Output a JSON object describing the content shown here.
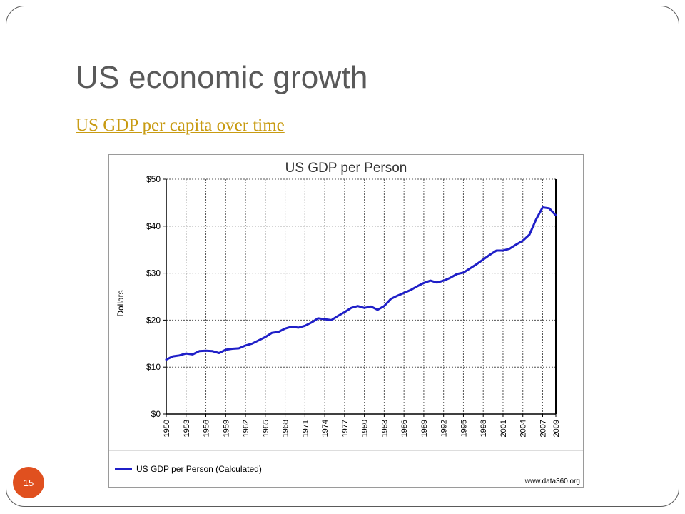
{
  "slide": {
    "title": "US economic growth",
    "link_text": "US GDP per capita over time",
    "page_number": "15"
  },
  "colors": {
    "frame": "#5a5a5a",
    "title_text": "#595959",
    "link": "#c89b12",
    "badge": "#e0501f",
    "series_line": "#1f1fc8"
  },
  "chart_data": {
    "type": "line",
    "title": "US GDP per Person",
    "ylabel": "Dollars",
    "xlabel": "",
    "ylim": [
      0,
      50
    ],
    "xlim": [
      1950,
      2009
    ],
    "grid": true,
    "y_tick_labels": [
      "$0",
      "$10",
      "$20",
      "$30",
      "$40",
      "$50"
    ],
    "y_tick_values": [
      0,
      10,
      20,
      30,
      40,
      50
    ],
    "x_tick_labels": [
      "1950",
      "1953",
      "1956",
      "1959",
      "1962",
      "1965",
      "1968",
      "1971",
      "1974",
      "1977",
      "1980",
      "1983",
      "1986",
      "1989",
      "1992",
      "1995",
      "1998",
      "2001",
      "2004",
      "2007",
      "2009"
    ],
    "legend_position": "bottom",
    "source": "www.data360.org",
    "series": [
      {
        "name": "US GDP per Person (Calculated)",
        "x": [
          1950,
          1951,
          1952,
          1953,
          1954,
          1955,
          1956,
          1957,
          1958,
          1959,
          1960,
          1961,
          1962,
          1963,
          1964,
          1965,
          1966,
          1967,
          1968,
          1969,
          1970,
          1971,
          1972,
          1973,
          1974,
          1975,
          1976,
          1977,
          1978,
          1979,
          1980,
          1981,
          1982,
          1983,
          1984,
          1985,
          1986,
          1987,
          1988,
          1989,
          1990,
          1991,
          1992,
          1993,
          1994,
          1995,
          1996,
          1997,
          1998,
          1999,
          2000,
          2001,
          2002,
          2003,
          2004,
          2005,
          2006,
          2007,
          2008,
          2009
        ],
        "values": [
          11.6,
          12.3,
          12.5,
          12.9,
          12.7,
          13.4,
          13.5,
          13.4,
          13.0,
          13.7,
          13.9,
          14.0,
          14.6,
          15.0,
          15.7,
          16.4,
          17.3,
          17.5,
          18.2,
          18.6,
          18.4,
          18.8,
          19.5,
          20.4,
          20.2,
          20.0,
          20.9,
          21.7,
          22.6,
          23.0,
          22.6,
          22.9,
          22.2,
          23.0,
          24.5,
          25.2,
          25.8,
          26.4,
          27.2,
          27.9,
          28.4,
          28.0,
          28.4,
          29.0,
          29.8,
          30.1,
          31.0,
          31.9,
          32.9,
          33.9,
          34.8,
          34.8,
          35.2,
          36.1,
          36.9,
          38.2,
          41.4,
          44.0,
          43.8,
          42.3
        ]
      }
    ]
  }
}
